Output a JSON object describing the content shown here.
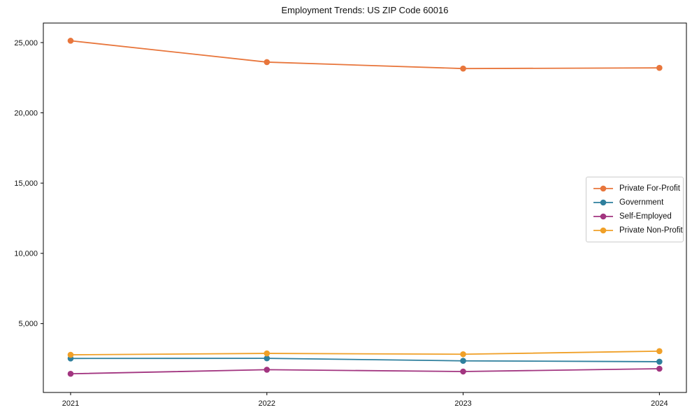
{
  "chart_data": {
    "type": "line",
    "title": "Employment Trends: US ZIP Code 60016",
    "x": [
      2021,
      2022,
      2023,
      2024
    ],
    "xtick_labels": [
      "2021",
      "2022",
      "2023",
      "2024"
    ],
    "series": [
      {
        "name": "Private For-Profit",
        "color": "#E8763C",
        "values": [
          25130,
          23610,
          23150,
          23200
        ]
      },
      {
        "name": "Government",
        "color": "#2E7F9D",
        "values": [
          2520,
          2530,
          2350,
          2290
        ]
      },
      {
        "name": "Self-Employed",
        "color": "#A23580",
        "values": [
          1430,
          1720,
          1590,
          1790
        ]
      },
      {
        "name": "Private Non-Profit",
        "color": "#F0A028",
        "values": [
          2780,
          2880,
          2820,
          3040
        ]
      }
    ],
    "yticks": [
      5000,
      10000,
      15000,
      20000,
      25000
    ],
    "ytick_labels": [
      "5,000",
      "10,000",
      "15,000",
      "20,000",
      "25,000"
    ],
    "ylim": [
      100,
      26390
    ],
    "xlabel": "",
    "ylabel": "",
    "grid": false,
    "legend_position": "center right",
    "axis_color": "#000000",
    "tick_label_color": "#111111"
  }
}
